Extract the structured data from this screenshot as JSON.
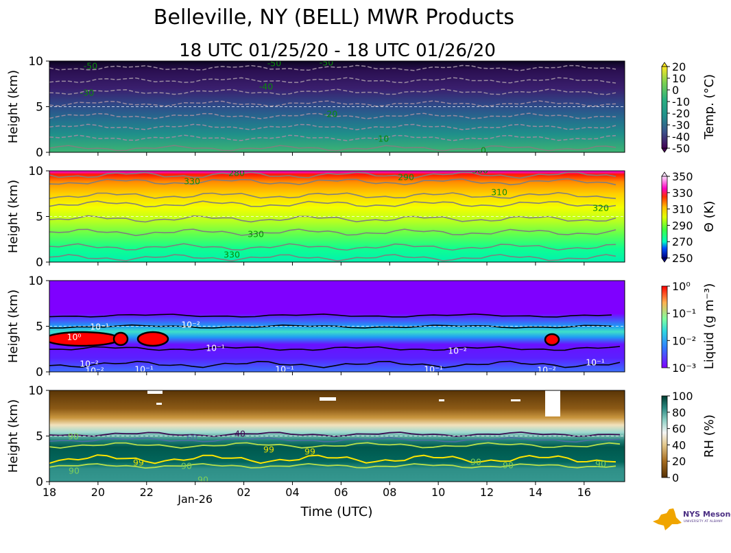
{
  "chart_data": {
    "type": "heatmap",
    "title": "Belleville, NY (BELL) MWR Products",
    "subtitle": "18 UTC 01/25/20 - 18 UTC 01/26/20",
    "xlabel": "Time (UTC)",
    "x_ticks": [
      "18",
      "20",
      "22",
      "Jan-26",
      "02",
      "04",
      "06",
      "08",
      "10",
      "12",
      "14",
      "16"
    ],
    "x_range_hours": [
      0,
      23.67
    ],
    "panels": [
      {
        "name": "temperature",
        "ylabel": "Height (km)",
        "ylim": [
          0,
          10
        ],
        "y_ticks": [
          "0",
          "5",
          "10"
        ],
        "colorbar_label": "Temp. (°C)",
        "colorbar_ticks": [
          "20",
          "10",
          "0",
          "-10",
          "-20",
          "-30",
          "-40",
          "-50"
        ],
        "colormap": [
          "#440154",
          "#482878",
          "#3e4989",
          "#31688e",
          "#26828e",
          "#1f9e89",
          "#35b779",
          "#6ece58",
          "#b5de2b",
          "#fde725"
        ],
        "range": [
          -50,
          20
        ],
        "contour_labels": [
          "-50",
          "-50",
          "-50",
          "-40",
          "-30",
          "-20",
          "-10",
          "0"
        ]
      },
      {
        "name": "theta",
        "ylabel": "Height (km)",
        "ylim": [
          0,
          10
        ],
        "y_ticks": [
          "0",
          "5",
          "10"
        ],
        "colorbar_label": "Θ (K)",
        "colorbar_ticks": [
          "350",
          "330",
          "310",
          "290",
          "270",
          "250"
        ],
        "colormap": [
          "#000080",
          "#0050ff",
          "#00e0ff",
          "#00ffa0",
          "#40ff40",
          "#c0ff00",
          "#ffff00",
          "#ffc000",
          "#ff6000",
          "#ff0000",
          "#ff00ff",
          "#ffc0ff"
        ],
        "range": [
          250,
          360
        ],
        "contour_labels": [
          "280",
          "290",
          "300",
          "310",
          "320",
          "330",
          "330",
          "330"
        ]
      },
      {
        "name": "liquid",
        "ylabel": "Height (km)",
        "ylim": [
          0,
          10
        ],
        "y_ticks": [
          "0",
          "5",
          "10"
        ],
        "colorbar_label": "Liquid (g m⁻³)",
        "colorbar_ticks": [
          "10⁰",
          "10⁻¹",
          "10⁻²",
          "10⁻³"
        ],
        "colormap": [
          "#8000ff",
          "#4060ff",
          "#00b0f0",
          "#40e0c0",
          "#a0ff80",
          "#ffc060",
          "#ff6030",
          "#ff0000"
        ],
        "range_log10": [
          -3,
          0
        ],
        "contour_labels": [
          "10⁰",
          "10⁻¹",
          "10⁻²",
          "10⁻¹",
          "10⁻¹",
          "10⁻²",
          "10⁻²",
          "10⁻²",
          "10⁻¹",
          "10⁻¹",
          "10⁻²",
          "10⁻¹"
        ]
      },
      {
        "name": "rh",
        "ylabel": "Height (km)",
        "ylim": [
          0,
          10
        ],
        "y_ticks": [
          "0",
          "5",
          "10"
        ],
        "colorbar_label": "RH (%)",
        "colorbar_ticks": [
          "100",
          "80",
          "60",
          "40",
          "20",
          "0"
        ],
        "colormap": [
          "#543005",
          "#8c510a",
          "#bf812d",
          "#dfc27d",
          "#f6e8c3",
          "#f5f5f5",
          "#c7eae5",
          "#80cdc1",
          "#35978f",
          "#01665e",
          "#003c30"
        ],
        "range": [
          0,
          100
        ],
        "contour_labels": [
          "40",
          "60",
          "90",
          "90",
          "99",
          "99",
          "99",
          "90",
          "90",
          "90",
          "90",
          "90"
        ]
      }
    ]
  },
  "logo": {
    "brand_nys": "NYS",
    "brand_name": "Mesonet",
    "subtitle": "UNIVERSITY AT ALBANY"
  }
}
